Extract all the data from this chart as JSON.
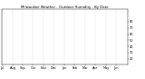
{
  "title": "Milwaukee Weather - Outdoor Humidity - By Date",
  "ylim": [
    10,
    100
  ],
  "yticks": [
    20,
    30,
    40,
    50,
    60,
    70,
    80
  ],
  "bg_color": "#ffffff",
  "grid_color": "#888888",
  "title_fontsize": 2.8,
  "tick_fontsize": 2.5,
  "num_points": 365,
  "seed": 99,
  "blue_color": "#0000dd",
  "red_color": "#dd0000",
  "dot_size": 0.4,
  "month_positions": [
    0,
    31,
    59,
    90,
    120,
    151,
    181,
    212,
    243,
    273,
    304,
    334
  ],
  "month_labels": [
    "Jul",
    "Aug",
    "Sep",
    "Oct",
    "Nov",
    "Dec",
    "Jan",
    "Feb",
    "Mar",
    "Apr",
    "May",
    "Jun"
  ]
}
